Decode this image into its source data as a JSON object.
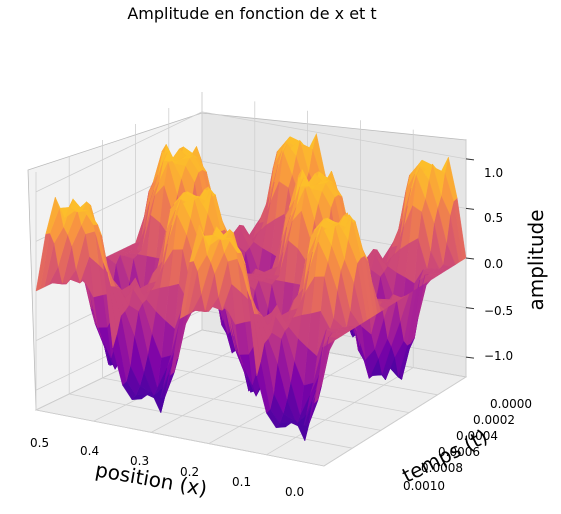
{
  "chart_data": {
    "type": "surface3d",
    "title": "Amplitude en fonction de x et t",
    "xlabel": "position (x)",
    "ylabel": "temps (t)",
    "zlabel": "amplitude",
    "x_ticks": [
      "0.0",
      "0.1",
      "0.2",
      "0.3",
      "0.4",
      "0.5"
    ],
    "t_ticks": [
      "0.0000",
      "0.0002",
      "0.0004",
      "0.0006",
      "0.0008",
      "0.0010"
    ],
    "z_ticks": [
      "1.0",
      "0.5",
      "0.0",
      "−0.5",
      "−1.0"
    ],
    "xlim": [
      0,
      0.5
    ],
    "tlim": [
      0,
      0.001
    ],
    "zlim": [
      -1.2,
      1.2
    ],
    "colormap": "plasma",
    "grid": true,
    "surface": {
      "resolution": [
        30,
        40
      ],
      "description_values": "amplitude in [-1.2, 1.2]"
    }
  }
}
